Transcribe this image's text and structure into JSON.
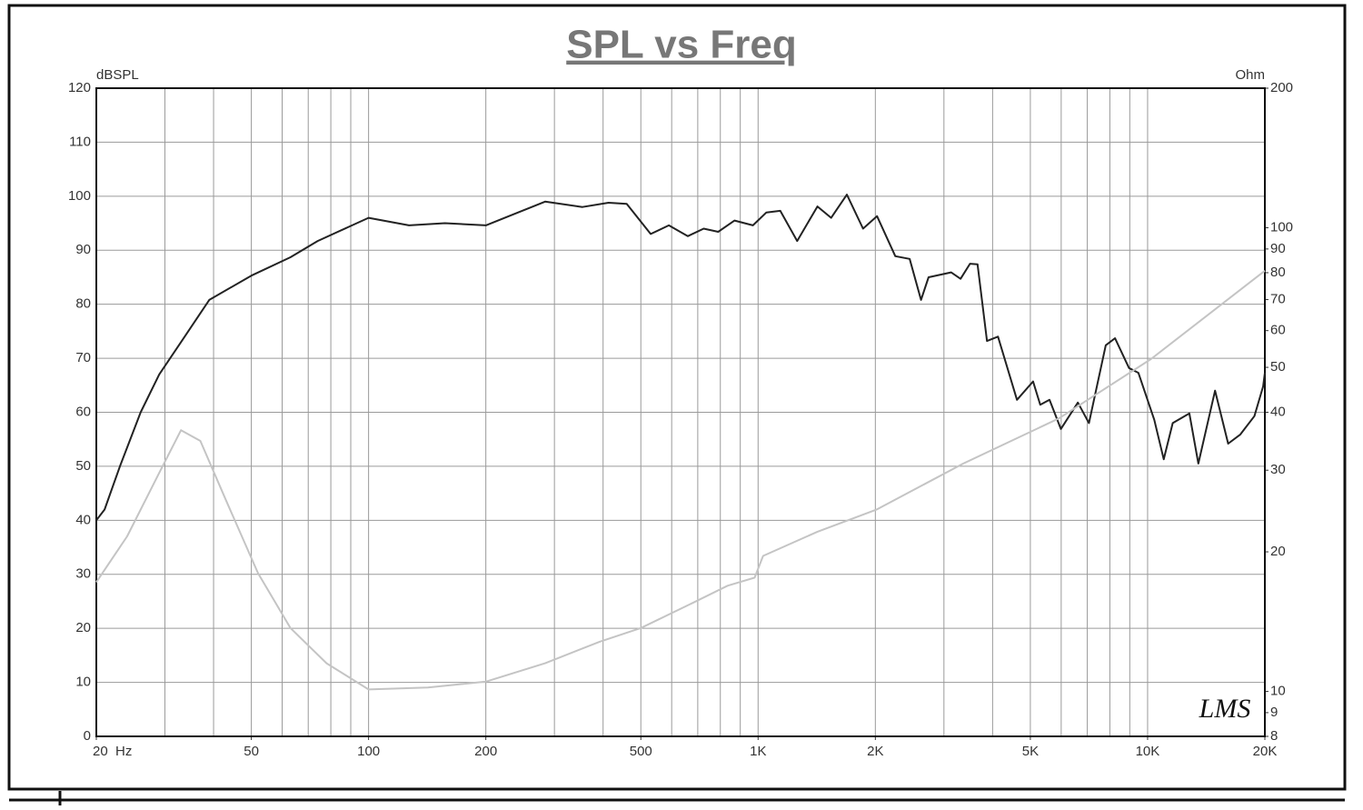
{
  "chart_data": {
    "type": "line",
    "title": "SPL vs Freq",
    "ylabel": "dBSPL",
    "y2label": "Ohm",
    "annotation": "LMS",
    "xlog": true,
    "y2log": true,
    "grid": true,
    "xlim": [
      20,
      20000
    ],
    "xticks": [
      {
        "value": 20,
        "label": "20  Hz"
      },
      50,
      100,
      200,
      500,
      {
        "value": 1000,
        "label": "1K"
      },
      {
        "value": 2000,
        "label": "2K"
      },
      {
        "value": 5000,
        "label": "5K"
      },
      {
        "value": 10000,
        "label": "10K"
      },
      {
        "value": 20000,
        "label": "20K"
      }
    ],
    "xgrid": [
      30,
      40,
      50,
      60,
      70,
      80,
      90,
      100,
      200,
      300,
      400,
      500,
      600,
      700,
      800,
      900,
      1000,
      2000,
      3000,
      4000,
      5000,
      6000,
      7000,
      8000,
      9000,
      10000
    ],
    "ylim": [
      0,
      120
    ],
    "yticks": [
      0,
      10,
      20,
      30,
      40,
      50,
      60,
      70,
      80,
      90,
      100,
      110,
      120
    ],
    "y2lim": [
      8,
      200
    ],
    "y2ticks": [
      8,
      9,
      10,
      20,
      30,
      40,
      50,
      60,
      70,
      80,
      90,
      100,
      200
    ],
    "series": [
      {
        "color": "#222222",
        "x": [
          20,
          21,
          23,
          26,
          29,
          33,
          39,
          50,
          63,
          74,
          100,
          127,
          157,
          200,
          229,
          284,
          354,
          413,
          460,
          530,
          590,
          660,
          725,
          790,
          870,
          970,
          1050,
          1140,
          1260,
          1420,
          1540,
          1690,
          1860,
          2020,
          2250,
          2450,
          2620,
          2740,
          3130,
          3310,
          3500,
          3660,
          3870,
          4130,
          4620,
          5080,
          5300,
          5600,
          5990,
          6620,
          7070,
          7810,
          8250,
          8960,
          9470,
          10400,
          11000,
          11600,
          12800,
          13500,
          14900,
          16100,
          17300,
          18800,
          19800,
          20000
        ],
        "values": [
          40,
          42,
          50,
          60,
          67,
          73,
          80.8,
          85.3,
          88.7,
          91.7,
          96,
          94.6,
          95,
          94.6,
          96.3,
          99,
          98,
          98.8,
          98.6,
          93,
          94.6,
          92.6,
          94,
          93.4,
          95.5,
          94.6,
          97,
          97.3,
          91.7,
          98.1,
          96,
          100.3,
          94,
          96.3,
          88.9,
          88.4,
          80.8,
          85,
          85.9,
          84.7,
          87.5,
          87.4,
          73.2,
          74,
          62.3,
          65.7,
          61.4,
          62.3,
          56.9,
          61.8,
          58,
          72.4,
          73.7,
          68.2,
          67.3,
          58.6,
          51.3,
          58,
          59.8,
          50.5,
          64,
          54.2,
          55.9,
          59.3,
          64.8,
          67.3
        ]
      },
      {
        "color": "#c4c4c4",
        "axis": "y2",
        "x": [
          20,
          24,
          29,
          33,
          37,
          43,
          52,
          63,
          78,
          100,
          142,
          200,
          284,
          392,
          500,
          667,
          835,
          980,
          1030,
          1420,
          2020,
          3360,
          5920,
          10200,
          20000
        ],
        "values": [
          17.2,
          21.6,
          29.6,
          36.6,
          34.7,
          25.9,
          18,
          13.7,
          11.5,
          10.1,
          10.2,
          10.5,
          11.5,
          12.8,
          13.7,
          15.4,
          16.9,
          17.6,
          19.6,
          22.1,
          24.7,
          31,
          38.8,
          52.1,
          80.8
        ]
      }
    ]
  }
}
